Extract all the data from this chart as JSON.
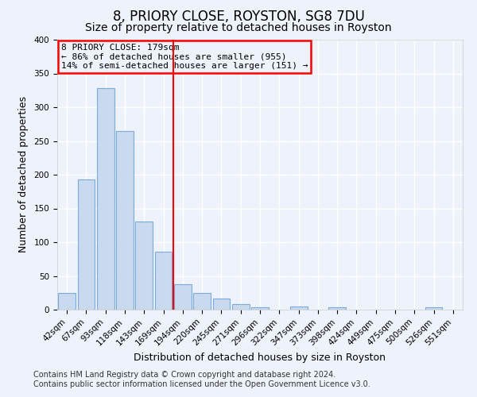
{
  "title": "8, PRIORY CLOSE, ROYSTON, SG8 7DU",
  "subtitle": "Size of property relative to detached houses in Royston",
  "xlabel": "Distribution of detached houses by size in Royston",
  "ylabel": "Number of detached properties",
  "bar_labels": [
    "42sqm",
    "67sqm",
    "93sqm",
    "118sqm",
    "143sqm",
    "169sqm",
    "194sqm",
    "220sqm",
    "245sqm",
    "271sqm",
    "296sqm",
    "322sqm",
    "347sqm",
    "373sqm",
    "398sqm",
    "424sqm",
    "449sqm",
    "475sqm",
    "500sqm",
    "526sqm",
    "551sqm"
  ],
  "bar_values": [
    25,
    193,
    328,
    265,
    131,
    86,
    38,
    25,
    16,
    8,
    4,
    0,
    5,
    0,
    3,
    0,
    0,
    0,
    0,
    3,
    0
  ],
  "bar_color": "#c9d9f0",
  "bar_edge_color": "#7aabdb",
  "ylim": [
    0,
    400
  ],
  "yticks": [
    0,
    50,
    100,
    150,
    200,
    250,
    300,
    350,
    400
  ],
  "red_line_x": 5.5,
  "annotation_lines": [
    "8 PRIORY CLOSE: 179sqm",
    "← 86% of detached houses are smaller (955)",
    "14% of semi-detached houses are larger (151) →"
  ],
  "footer_line1": "Contains HM Land Registry data © Crown copyright and database right 2024.",
  "footer_line2": "Contains public sector information licensed under the Open Government Licence v3.0.",
  "bg_color": "#eef2fa",
  "grid_color": "#ffffff",
  "title_fontsize": 12,
  "subtitle_fontsize": 10,
  "axis_label_fontsize": 9,
  "tick_fontsize": 7.5,
  "footer_fontsize": 7
}
